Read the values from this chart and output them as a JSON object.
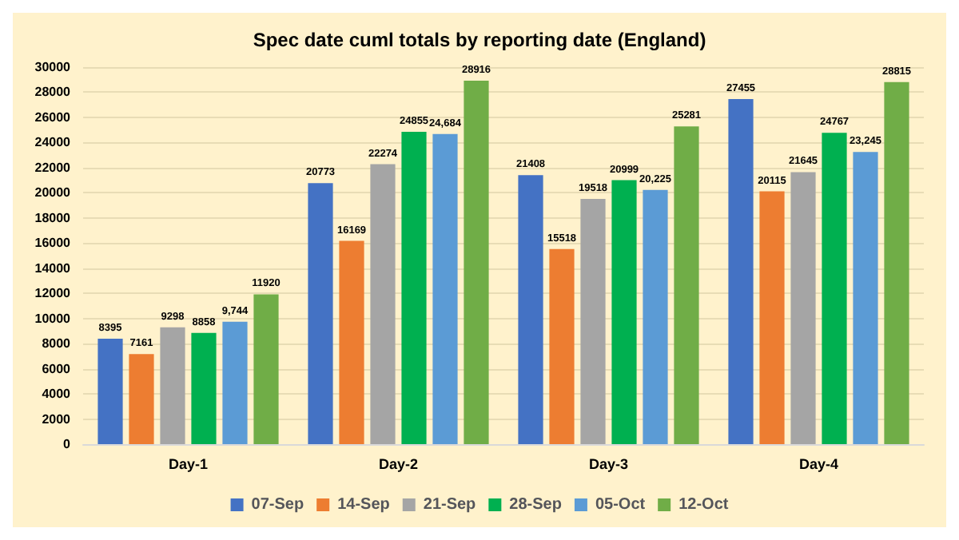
{
  "chart_data": {
    "type": "bar",
    "title": "Spec date cuml totals by reporting date (England)",
    "categories": [
      "Day-1",
      "Day-2",
      "Day-3",
      "Day-4"
    ],
    "series": [
      {
        "name": "07-Sep",
        "color": "#4472c4",
        "values": [
          8395,
          20773,
          21408,
          27455
        ],
        "value_labels": [
          "8395",
          "20773",
          "21408",
          "27455"
        ]
      },
      {
        "name": "14-Sep",
        "color": "#ed7d31",
        "values": [
          7161,
          16169,
          15518,
          20115
        ],
        "value_labels": [
          "7161",
          "16169",
          "15518",
          "20115"
        ]
      },
      {
        "name": "21-Sep",
        "color": "#a5a5a5",
        "values": [
          9298,
          22274,
          19518,
          21645
        ],
        "value_labels": [
          "9298",
          "22274",
          "19518",
          "21645"
        ]
      },
      {
        "name": "28-Sep",
        "color": "#00b050",
        "values": [
          8858,
          24855,
          20999,
          24767
        ],
        "value_labels": [
          "8858",
          "24855",
          "20999",
          "24767"
        ]
      },
      {
        "name": "05-Oct",
        "color": "#5b9bd5",
        "values": [
          9744,
          24684,
          20225,
          23245
        ],
        "value_labels": [
          "9,744",
          "24,684",
          "20,225",
          "23,245"
        ]
      },
      {
        "name": "12-Oct",
        "color": "#70ad47",
        "values": [
          11920,
          28916,
          25281,
          28815
        ],
        "value_labels": [
          "11920",
          "28916",
          "25281",
          "28815"
        ]
      }
    ],
    "ylim": [
      0,
      30000
    ],
    "yticks": [
      0,
      2000,
      4000,
      6000,
      8000,
      10000,
      12000,
      14000,
      16000,
      18000,
      20000,
      22000,
      24000,
      26000,
      28000,
      30000
    ],
    "grid": "y",
    "legend": "bottom"
  }
}
